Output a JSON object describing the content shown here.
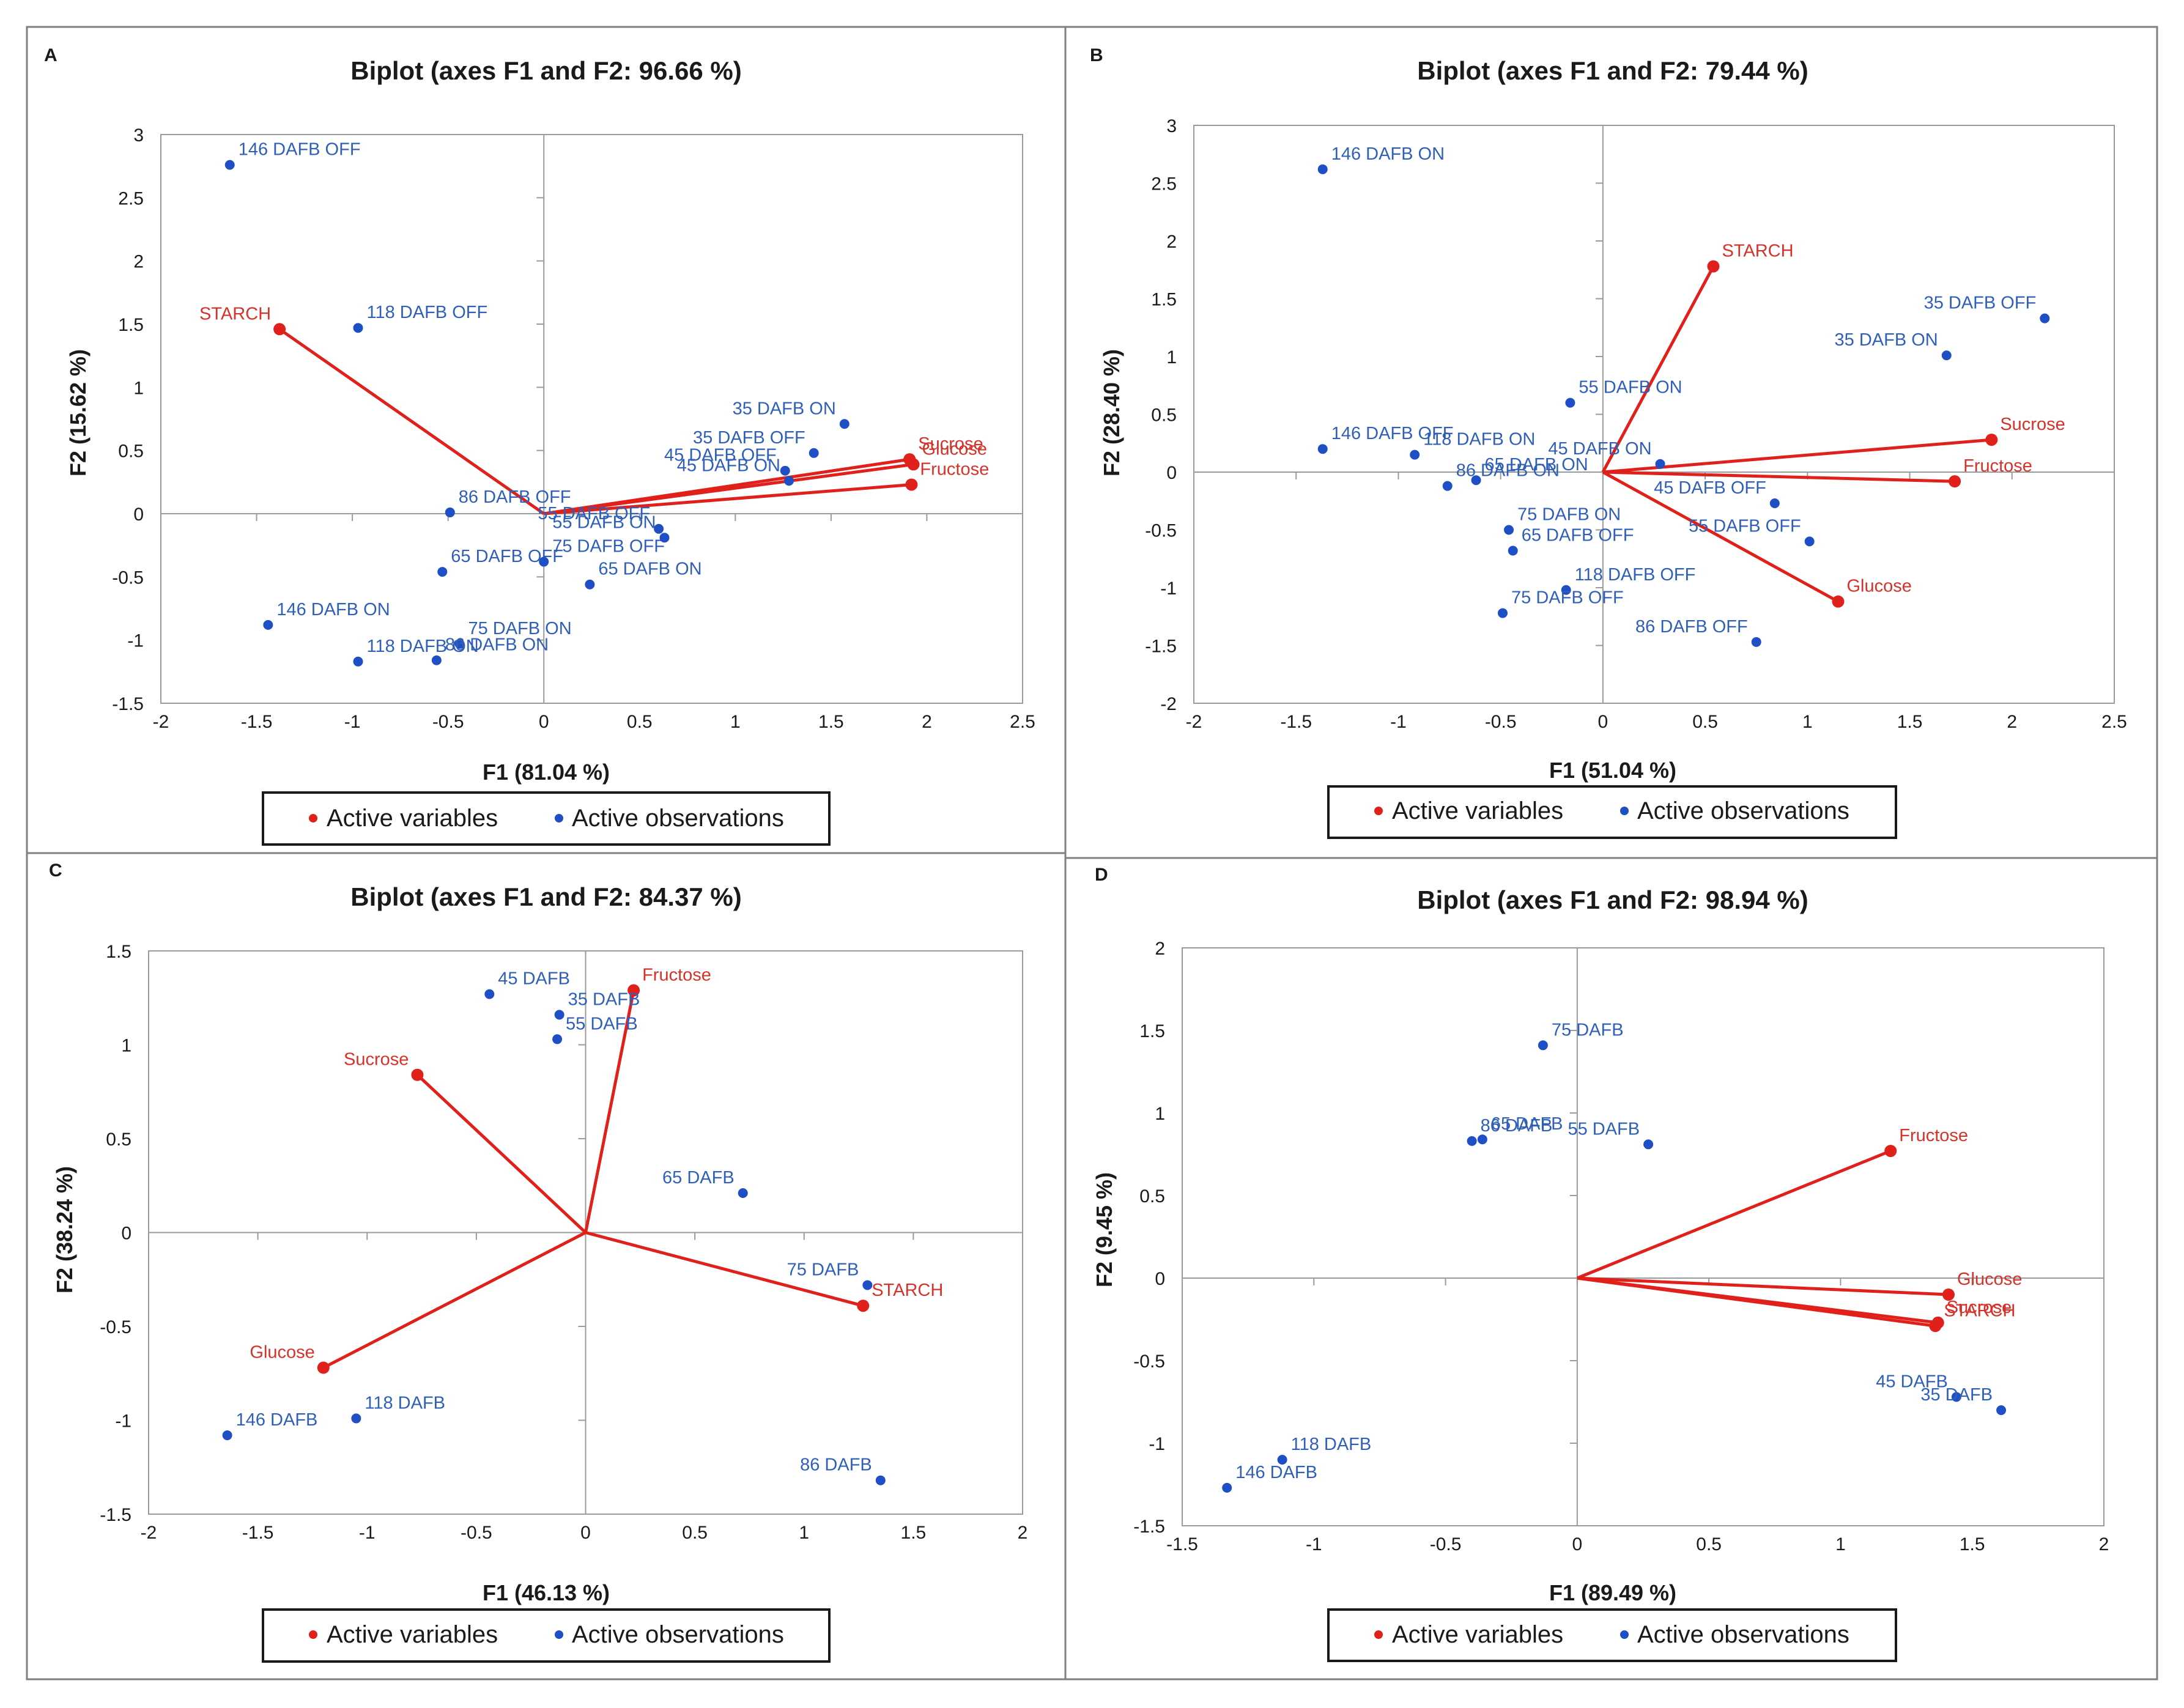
{
  "colors": {
    "variable": "#e0201b",
    "observation": "#1f4fc4",
    "variable_label": "#d6322a",
    "observation_label": "#2f5fb8",
    "axis": "#9a9a9a",
    "text": "#1a1a1a"
  },
  "legend": {
    "variables": "Active variables",
    "observations": "Active observations"
  },
  "chart_data": [
    {
      "panel": "A",
      "type": "scatter",
      "title": "Biplot (axes F1 and F2: 96.66 %)",
      "xlabel": "F1 (81.04 %)",
      "ylabel": "F2 (15.62 %)",
      "xlim": [
        -2,
        2.5
      ],
      "ylim": [
        -1.5,
        3
      ],
      "xticks": [
        -2,
        -1.5,
        -1,
        -0.5,
        0,
        0.5,
        1,
        1.5,
        2,
        2.5
      ],
      "yticks": [
        -1.5,
        -1,
        -0.5,
        0,
        0.5,
        1,
        1.5,
        2,
        2.5,
        3
      ],
      "variables": [
        {
          "label": "STARCH",
          "x": -1.38,
          "y": 1.46
        },
        {
          "label": "Glucose",
          "x": 1.93,
          "y": 0.39
        },
        {
          "label": "Sucrose",
          "x": 1.91,
          "y": 0.43
        },
        {
          "label": "Fructose",
          "x": 1.92,
          "y": 0.23
        }
      ],
      "observations": [
        {
          "label": "146 DAFB  OFF",
          "x": -1.64,
          "y": 2.76
        },
        {
          "label": "118 DAFB OFF",
          "x": -0.97,
          "y": 1.47
        },
        {
          "label": "86 DAFB OFF",
          "x": -0.49,
          "y": 0.01
        },
        {
          "label": "65 DAFB OFF",
          "x": -0.53,
          "y": -0.46
        },
        {
          "label": "75 DAFB OFF",
          "x": 0.0,
          "y": -0.38
        },
        {
          "label": "146 DAFB  ON",
          "x": -1.44,
          "y": -0.88
        },
        {
          "label": "75 DAFB ON",
          "x": -0.44,
          "y": -1.03
        },
        {
          "label": "118 DAFB ON",
          "x": -0.97,
          "y": -1.17
        },
        {
          "label": "86 DAFB ON",
          "x": -0.56,
          "y": -1.16
        },
        {
          "label": "35 DAFB ON",
          "x": 1.57,
          "y": 0.71
        },
        {
          "label": "35 DAFB OFF",
          "x": 1.41,
          "y": 0.48
        },
        {
          "label": "45 DAFB OFF",
          "x": 1.26,
          "y": 0.34
        },
        {
          "label": "45 DAFB ON",
          "x": 1.28,
          "y": 0.26
        },
        {
          "label": "55 DAFB OFF",
          "x": 0.6,
          "y": -0.12
        },
        {
          "label": "55 DAFB ON",
          "x": 0.63,
          "y": -0.19
        },
        {
          "label": "65 DAFB ON",
          "x": 0.24,
          "y": -0.56
        }
      ]
    },
    {
      "panel": "B",
      "type": "scatter",
      "title": "Biplot (axes F1 and F2: 79.44 %)",
      "xlabel": "F1 (51.04 %)",
      "ylabel": "F2 (28.40 %)",
      "xlim": [
        -2,
        2.5
      ],
      "ylim": [
        -2,
        3
      ],
      "xticks": [
        -2,
        -1.5,
        -1,
        -0.5,
        0,
        0.5,
        1,
        1.5,
        2,
        2.5
      ],
      "yticks": [
        -2,
        -1.5,
        -1,
        -0.5,
        0,
        0.5,
        1,
        1.5,
        2,
        2.5,
        3
      ],
      "variables": [
        {
          "label": "STARCH",
          "x": 0.54,
          "y": 1.78
        },
        {
          "label": "Sucrose",
          "x": 1.9,
          "y": 0.28
        },
        {
          "label": "Fructose",
          "x": 1.72,
          "y": -0.08
        },
        {
          "label": "Glucose",
          "x": 1.15,
          "y": -1.12
        }
      ],
      "observations": [
        {
          "label": "146 DAFB  ON",
          "x": -1.37,
          "y": 2.62
        },
        {
          "label": "35 DAFB OFF",
          "x": 2.16,
          "y": 1.33
        },
        {
          "label": "35 DAFB ON",
          "x": 1.68,
          "y": 1.01
        },
        {
          "label": "55 DAFB ON",
          "x": -0.16,
          "y": 0.6
        },
        {
          "label": "146 DAFB  OFF",
          "x": -1.37,
          "y": 0.2
        },
        {
          "label": "118 DAFB ON",
          "x": -0.92,
          "y": 0.15
        },
        {
          "label": "45 DAFB ON",
          "x": 0.28,
          "y": 0.07
        },
        {
          "label": "65 DAFB ON",
          "x": -0.62,
          "y": -0.07
        },
        {
          "label": "86 DAFB ON",
          "x": -0.76,
          "y": -0.12
        },
        {
          "label": "45 DAFB OFF",
          "x": 0.84,
          "y": -0.27
        },
        {
          "label": "75 DAFB ON",
          "x": -0.46,
          "y": -0.5
        },
        {
          "label": "65 DAFB OFF",
          "x": -0.44,
          "y": -0.68
        },
        {
          "label": "55 DAFB OFF",
          "x": 1.01,
          "y": -0.6
        },
        {
          "label": "118 DAFB OFF",
          "x": -0.18,
          "y": -1.02
        },
        {
          "label": "75 DAFB OFF",
          "x": -0.49,
          "y": -1.22
        },
        {
          "label": "86 DAFB OFF",
          "x": 0.75,
          "y": -1.47
        }
      ]
    },
    {
      "panel": "C",
      "type": "scatter",
      "title": "Biplot (axes F1 and F2: 84.37 %)",
      "xlabel": "F1 (46.13 %)",
      "ylabel": "F2 (38.24 %)",
      "xlim": [
        -2,
        2
      ],
      "ylim": [
        -1.5,
        1.5
      ],
      "xticks": [
        -2,
        -1.5,
        -1,
        -0.5,
        0,
        0.5,
        1,
        1.5,
        2
      ],
      "yticks": [
        -1.5,
        -1,
        -0.5,
        0,
        0.5,
        1,
        1.5
      ],
      "variables": [
        {
          "label": "Fructose",
          "x": 0.22,
          "y": 1.29
        },
        {
          "label": "Sucrose",
          "x": -0.77,
          "y": 0.84
        },
        {
          "label": "STARCH",
          "x": 1.27,
          "y": -0.39
        },
        {
          "label": "Glucose",
          "x": -1.2,
          "y": -0.72
        }
      ],
      "observations": [
        {
          "label": "45 DAFB",
          "x": -0.44,
          "y": 1.27
        },
        {
          "label": "35 DAFB",
          "x": -0.12,
          "y": 1.16
        },
        {
          "label": "55 DAFB",
          "x": -0.13,
          "y": 1.03
        },
        {
          "label": "65 DAFB",
          "x": 0.72,
          "y": 0.21
        },
        {
          "label": "75 DAFB",
          "x": 1.29,
          "y": -0.28
        },
        {
          "label": "118 DAFB",
          "x": -1.05,
          "y": -0.99
        },
        {
          "label": "146 DAFB",
          "x": -1.64,
          "y": -1.08
        },
        {
          "label": "86 DAFB",
          "x": 1.35,
          "y": -1.32
        }
      ]
    },
    {
      "panel": "D",
      "type": "scatter",
      "title": "Biplot (axes F1 and F2: 98.94 %)",
      "xlabel": "F1 (89.49 %)",
      "ylabel": "F2 (9.45 %)",
      "xlim": [
        -1.5,
        2
      ],
      "ylim": [
        -1.5,
        2
      ],
      "xticks": [
        -1.5,
        -1,
        -0.5,
        0,
        0.5,
        1,
        1.5,
        2
      ],
      "yticks": [
        -1.5,
        -1,
        -0.5,
        0,
        0.5,
        1,
        1.5,
        2
      ],
      "variables": [
        {
          "label": "Fructose",
          "x": 1.19,
          "y": 0.77
        },
        {
          "label": "Glucose",
          "x": 1.41,
          "y": -0.1
        },
        {
          "label": "Sucrose",
          "x": 1.37,
          "y": -0.27
        },
        {
          "label": "STARCH",
          "x": 1.36,
          "y": -0.29
        }
      ],
      "observations": [
        {
          "label": "75 DAFB",
          "x": -0.13,
          "y": 1.41
        },
        {
          "label": "65 DAFB",
          "x": -0.36,
          "y": 0.84
        },
        {
          "label": "86 DAFB",
          "x": -0.4,
          "y": 0.83
        },
        {
          "label": "55 DAFB",
          "x": 0.27,
          "y": 0.81
        },
        {
          "label": "45 DAFB",
          "x": 1.44,
          "y": -0.72
        },
        {
          "label": "35 DAFB",
          "x": 1.61,
          "y": -0.8
        },
        {
          "label": "118 DAFB",
          "x": -1.12,
          "y": -1.1
        },
        {
          "label": "146 DAFB",
          "x": -1.33,
          "y": -1.27
        }
      ]
    }
  ]
}
